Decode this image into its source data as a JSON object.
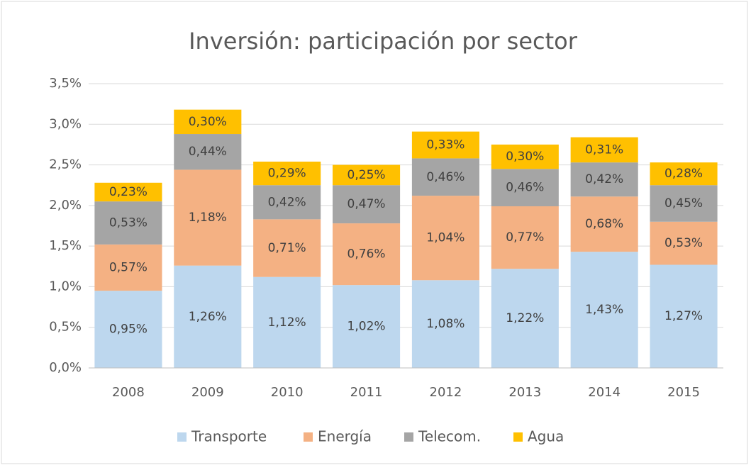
{
  "chart_data": {
    "type": "stacked_bar",
    "title": "Inversión: participación por sector",
    "categories": [
      "2008",
      "2009",
      "2010",
      "2011",
      "2012",
      "2013",
      "2014",
      "2015"
    ],
    "series": [
      {
        "name": "Transporte",
        "color": "#bdd7ee",
        "values": [
          0.95,
          1.26,
          1.12,
          1.02,
          1.08,
          1.22,
          1.43,
          1.27
        ],
        "value_labels": [
          "0,95%",
          "1,26%",
          "1,12%",
          "1,02%",
          "1,08%",
          "1,22%",
          "1,43%",
          "1,27%"
        ]
      },
      {
        "name": "Energía",
        "color": "#f4b183",
        "values": [
          0.57,
          1.18,
          0.71,
          0.76,
          1.04,
          0.77,
          0.68,
          0.53
        ],
        "value_labels": [
          "0,57%",
          "1,18%",
          "0,71%",
          "0,76%",
          "1,04%",
          "0,77%",
          "0,68%",
          "0,53%"
        ]
      },
      {
        "name": "Telecom.",
        "color": "#a5a5a5",
        "values": [
          0.53,
          0.44,
          0.42,
          0.47,
          0.46,
          0.46,
          0.42,
          0.45
        ],
        "value_labels": [
          "0,53%",
          "0,44%",
          "0,42%",
          "0,47%",
          "0,46%",
          "0,46%",
          "0,42%",
          "0,45%"
        ]
      },
      {
        "name": "Agua",
        "color": "#ffc000",
        "values": [
          0.23,
          0.3,
          0.29,
          0.25,
          0.33,
          0.3,
          0.31,
          0.28
        ],
        "value_labels": [
          "0,23%",
          "0,30%",
          "0,29%",
          "0,25%",
          "0,33%",
          "0,30%",
          "0,31%",
          "0,28%"
        ]
      }
    ],
    "ylim": [
      0,
      3.5
    ],
    "yticks": [
      {
        "value": 0,
        "label": "0,0%"
      },
      {
        "value": 0.5,
        "label": "0,5%"
      },
      {
        "value": 1,
        "label": "1,0%"
      },
      {
        "value": 1.5,
        "label": "1,5%"
      },
      {
        "value": 2,
        "label": "2,0%"
      },
      {
        "value": 2.5,
        "label": "2,5%"
      },
      {
        "value": 3,
        "label": "3,0%"
      },
      {
        "value": 3.5,
        "label": "3,5%"
      }
    ],
    "grid": true,
    "legend": "bottom"
  }
}
